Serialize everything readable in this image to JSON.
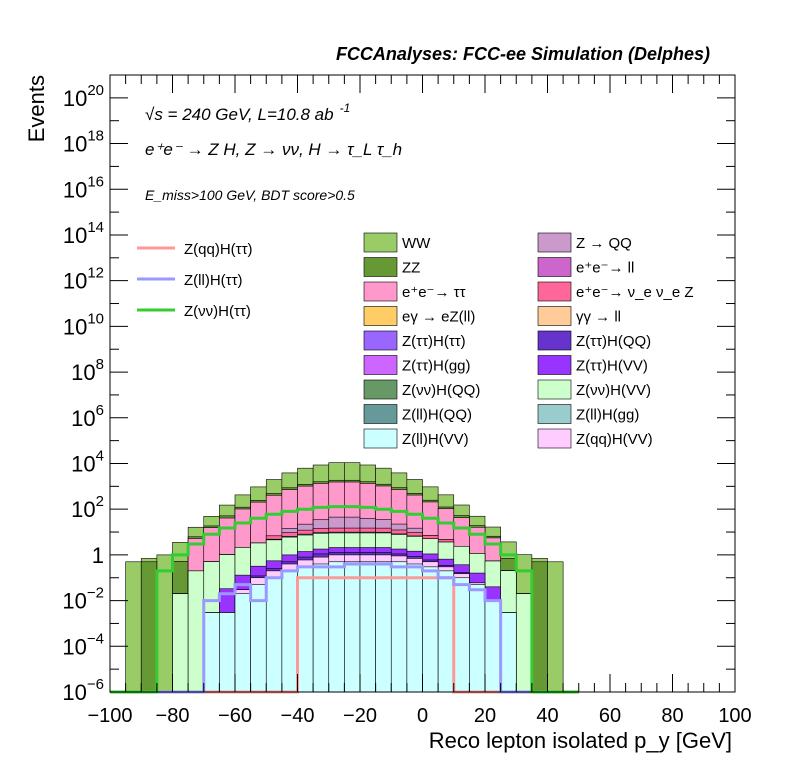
{
  "header": {
    "title": "FCCAnalyses: FCC-ee Simulation (Delphes)",
    "energy_label": "√s = 240 GeV, L=10.8 ab",
    "lumi_exponent": "-1",
    "process_label": "e⁺e⁻ → Z H, Z → νν, H → τ_L τ_h",
    "cut_label": "E_miss>100 GeV, BDT score>0.5"
  },
  "chart_data": {
    "type": "histogram-stacked-log",
    "xlabel": "Reco lepton isolated p_y [GeV]",
    "ylabel": "Events",
    "xlim": [
      -100,
      100
    ],
    "ylim": [
      1e-06,
      1e+21
    ],
    "yscale": "log",
    "xticks": [
      -100,
      -80,
      -60,
      -40,
      -20,
      0,
      20,
      40,
      60,
      80,
      100
    ],
    "xtick_labels": [
      "−100",
      "−80",
      "−60",
      "−40",
      "−20",
      "0",
      "20",
      "40",
      "60",
      "80",
      "100"
    ],
    "yticks": [
      {
        "base": "10",
        "exp": "20",
        "value": 1e+20
      },
      {
        "base": "10",
        "exp": "18",
        "value": 1e+18
      },
      {
        "base": "10",
        "exp": "16",
        "value": 1e+16
      },
      {
        "base": "10",
        "exp": "14",
        "value": 100000000000000.0
      },
      {
        "base": "10",
        "exp": "12",
        "value": 1000000000000.0
      },
      {
        "base": "10",
        "exp": "10",
        "value": 10000000000.0
      },
      {
        "base": "10",
        "exp": "8",
        "value": 100000000.0
      },
      {
        "base": "10",
        "exp": "6",
        "value": 1000000.0
      },
      {
        "base": "10",
        "exp": "4",
        "value": 10000.0
      },
      {
        "base": "10",
        "exp": "2",
        "value": 100.0
      },
      {
        "base": "1",
        "exp": "",
        "value": 1
      },
      {
        "base": "10",
        "exp": "−2",
        "value": 0.01
      },
      {
        "base": "10",
        "exp": "−4",
        "value": 0.0001
      },
      {
        "base": "10",
        "exp": "−6",
        "value": 1e-06
      }
    ],
    "bin_edges_start": -100,
    "bin_width": 5,
    "stack_order_bottom_to_top": [
      "Z(ll)H(VV)",
      "Z(qq)H(VV)",
      "Z(ττ)H(QQ)",
      "Z(ττ)H(VV)",
      "Z(νν)H(VV)",
      "Z(ll)H(QQ)",
      "e⁺e⁻→ ν_e ν_e Z",
      "Z → QQ",
      "e⁺e⁻→ ττ",
      "ZZ",
      "WW"
    ],
    "stack_series": [
      {
        "name": "Z(ll)H(VV)",
        "color": "#ccffff",
        "values": [
          0,
          0,
          0,
          0,
          0,
          0,
          0.003,
          0.003,
          0.02,
          0.05,
          0.1,
          0.2,
          0.3,
          0.4,
          0.5,
          0.5,
          0.5,
          0.5,
          0.5,
          0.4,
          0.3,
          0.2,
          0.1,
          0.05,
          0.01,
          0.003,
          0,
          0,
          0,
          0
        ]
      },
      {
        "name": "Z(qq)H(VV)",
        "color": "#ffccff",
        "values": [
          0,
          0,
          0,
          0,
          0,
          0,
          0,
          0,
          0.01,
          0.05,
          0.1,
          0.2,
          0.3,
          0.4,
          0.5,
          0.5,
          0.5,
          0.5,
          0.4,
          0.3,
          0.2,
          0.1,
          0.05,
          0.01,
          0,
          0,
          0,
          0,
          0,
          0
        ]
      },
      {
        "name": "Z(ττ)H(QQ)",
        "color": "#6633cc",
        "values": [
          0,
          0,
          0,
          0,
          0,
          0,
          0,
          0,
          0,
          0.02,
          0.05,
          0.1,
          0.2,
          0.3,
          0.3,
          0.3,
          0.3,
          0.3,
          0.2,
          0.15,
          0.1,
          0.05,
          0.02,
          0,
          0,
          0,
          0,
          0,
          0,
          0
        ]
      },
      {
        "name": "Z(ττ)H(VV)",
        "color": "#9933ff",
        "values": [
          0,
          0,
          0,
          0,
          0,
          0,
          0,
          0.03,
          0.1,
          0.2,
          0.3,
          0.5,
          0.6,
          0.7,
          0.8,
          0.8,
          0.8,
          0.8,
          0.7,
          0.6,
          0.5,
          0.3,
          0.2,
          0.1,
          0.03,
          0,
          0,
          0,
          0,
          0
        ]
      },
      {
        "name": "Z(νν)H(VV)",
        "color": "#ccffcc",
        "values": [
          0,
          0,
          0,
          0,
          0.02,
          0.2,
          0.5,
          1,
          2,
          3,
          4,
          5,
          6,
          7,
          7,
          7,
          7,
          7,
          6,
          5,
          4,
          3,
          2,
          1,
          0.5,
          0.2,
          0.02,
          0,
          0,
          0
        ]
      },
      {
        "name": "Z(ll)H(QQ)",
        "color": "#669999",
        "values": [
          0,
          0,
          0,
          0,
          0,
          0,
          0,
          0,
          0,
          0,
          0.3,
          0.5,
          0.7,
          0.8,
          0.8,
          0.8,
          0.8,
          0.7,
          0.5,
          0.3,
          0,
          0,
          0,
          0,
          0,
          0,
          0,
          0,
          0,
          0
        ]
      },
      {
        "name": "e⁺e⁻→ ν_e ν_e Z",
        "color": "#ff6699",
        "values": [
          0,
          0,
          0,
          0,
          0,
          0,
          0,
          0,
          0,
          0,
          2,
          3,
          4,
          5,
          5,
          5,
          5,
          5,
          4,
          3,
          2,
          1,
          0,
          0,
          0,
          0,
          0,
          0,
          0,
          0
        ]
      },
      {
        "name": "Z → QQ",
        "color": "#cc99cc",
        "values": [
          0,
          0,
          0,
          0,
          0,
          0,
          0,
          0,
          0,
          0,
          0,
          5,
          10,
          20,
          30,
          30,
          25,
          20,
          10,
          5,
          0,
          0,
          0,
          0,
          0,
          0,
          0,
          0,
          0,
          0
        ]
      },
      {
        "name": "e⁺e⁻→ ττ",
        "color": "#ff99cc",
        "values": [
          0,
          0,
          0,
          0,
          0,
          5,
          15,
          40,
          100,
          200,
          400,
          700,
          1000,
          1300,
          1500,
          1500,
          1300,
          1000,
          700,
          400,
          200,
          100,
          40,
          15,
          5,
          0,
          0,
          0,
          0,
          0
        ]
      },
      {
        "name": "ZZ",
        "color": "#669933",
        "values": [
          0,
          0,
          0.5,
          0,
          0.5,
          1,
          3,
          10,
          20,
          40,
          80,
          150,
          200,
          250,
          300,
          300,
          250,
          200,
          150,
          80,
          40,
          20,
          10,
          3,
          1,
          0.5,
          0,
          0.5,
          0,
          0
        ]
      },
      {
        "name": "WW",
        "color": "#99cc66",
        "values": [
          0,
          0.5,
          0.2,
          1,
          3,
          10,
          30,
          100,
          300,
          700,
          1500,
          3000,
          5000,
          7000,
          9000,
          9000,
          7000,
          5000,
          3000,
          1500,
          700,
          300,
          100,
          30,
          10,
          3,
          1,
          0.2,
          0.5,
          0
        ]
      }
    ],
    "line_series": [
      {
        "name": "Z(qq)H(ττ)",
        "color": "#ff9999",
        "values": [
          0,
          0,
          0,
          0,
          0,
          0,
          0,
          0,
          0,
          0,
          0,
          0,
          0.1,
          0.1,
          0.1,
          0.1,
          0.1,
          0.1,
          0.1,
          0.1,
          0.1,
          0.1,
          0,
          0,
          0,
          0,
          0,
          0,
          0,
          0
        ]
      },
      {
        "name": "Z(ll)H(ττ)",
        "color": "#9999ff",
        "values": [
          0,
          0,
          0,
          0,
          0,
          0,
          0.01,
          0.02,
          0.05,
          0.01,
          0.1,
          0.2,
          0.3,
          0.3,
          0.3,
          0.4,
          0.4,
          0.4,
          0.3,
          0.3,
          0.2,
          0.1,
          0.05,
          0.03,
          0.01,
          0,
          0,
          0,
          0,
          0
        ]
      },
      {
        "name": "Z(νν)H(ττ)",
        "color": "#33cc33",
        "values": [
          0,
          0,
          0,
          0.2,
          1,
          3,
          8,
          15,
          25,
          40,
          60,
          80,
          100,
          120,
          130,
          130,
          120,
          100,
          80,
          60,
          40,
          25,
          15,
          8,
          3,
          1,
          0.2,
          0,
          0,
          0
        ]
      }
    ],
    "legend_left": [
      "Z(qq)H(ττ)",
      "Z(ll)H(ττ)",
      "Z(νν)H(ττ)"
    ],
    "legend_boxes": [
      {
        "name": "WW",
        "color": "#99cc66"
      },
      {
        "name": "Z → QQ",
        "color": "#cc99cc"
      },
      {
        "name": "ZZ",
        "color": "#669933"
      },
      {
        "name": "e⁺e⁻→ ll",
        "color": "#cc66cc"
      },
      {
        "name": "e⁺e⁻→ ττ",
        "color": "#ff99cc"
      },
      {
        "name": "e⁺e⁻→ ν_e ν_e Z",
        "color": "#ff6699"
      },
      {
        "name": "eγ → eZ(ll)",
        "color": "#ffcc66"
      },
      {
        "name": "γγ → ll",
        "color": "#ffcc99"
      },
      {
        "name": "Z(ττ)H(ττ)",
        "color": "#9966ff"
      },
      {
        "name": "Z(ττ)H(QQ)",
        "color": "#6633cc"
      },
      {
        "name": "Z(ττ)H(gg)",
        "color": "#cc66ff"
      },
      {
        "name": "Z(ττ)H(VV)",
        "color": "#9933ff"
      },
      {
        "name": "Z(νν)H(QQ)",
        "color": "#669966"
      },
      {
        "name": "Z(νν)H(VV)",
        "color": "#ccffcc"
      },
      {
        "name": "Z(ll)H(QQ)",
        "color": "#669999"
      },
      {
        "name": "Z(ll)H(gg)",
        "color": "#99cccc"
      },
      {
        "name": "Z(ll)H(VV)",
        "color": "#ccffff"
      },
      {
        "name": "Z(qq)H(VV)",
        "color": "#ffccff"
      }
    ]
  }
}
